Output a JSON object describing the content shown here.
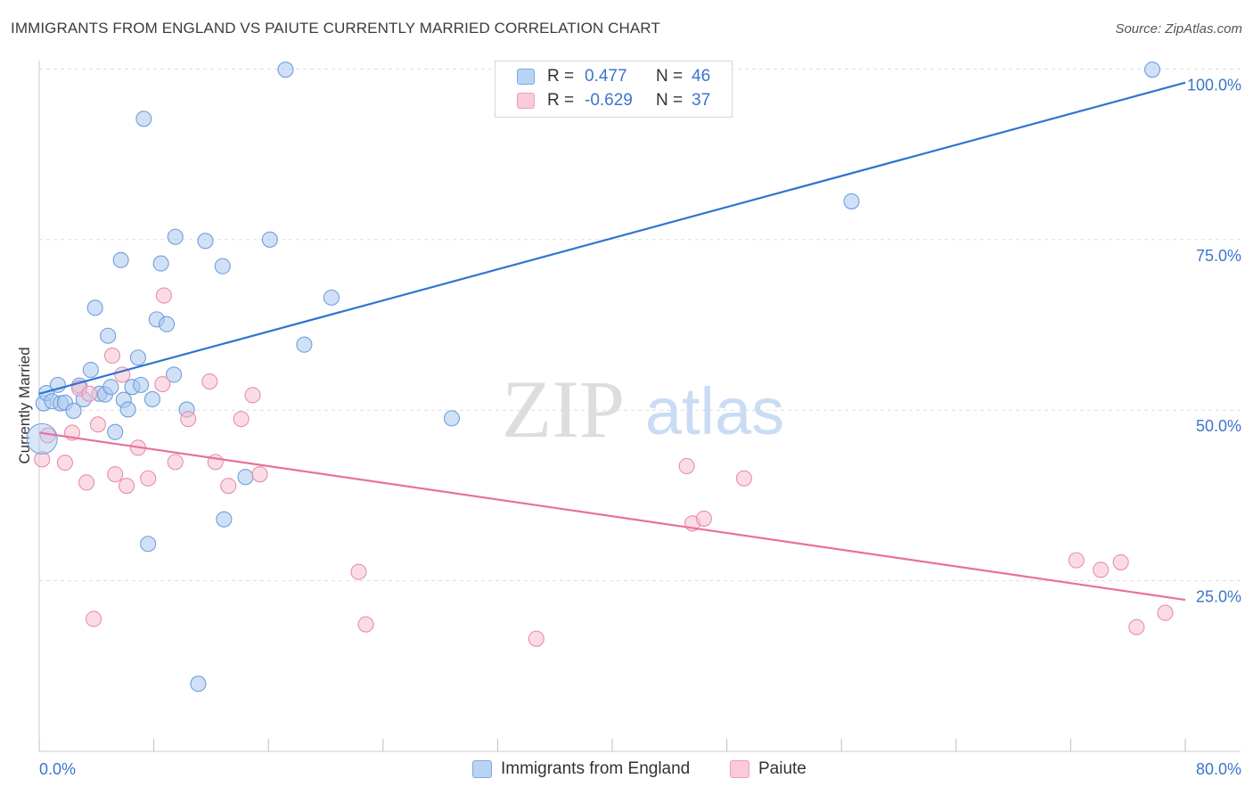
{
  "title": "IMMIGRANTS FROM ENGLAND VS PAIUTE CURRENTLY MARRIED CORRELATION CHART",
  "source": "Source: ZipAtlas.com",
  "watermark": {
    "zip": "ZIP",
    "atlas": "atlas"
  },
  "legend": {
    "rows": [
      {
        "r_label": "R =",
        "r_value": "0.477",
        "n_label": "N =",
        "n_value": "46"
      },
      {
        "r_label": "R =",
        "r_value": "-0.629",
        "n_label": "N =",
        "n_value": "37"
      }
    ]
  },
  "bottom_legend": {
    "england": "Immigrants from England",
    "paiute": "Paiute"
  },
  "colors": {
    "england_fill": "#a9c8f0",
    "england_stroke": "#6f9fdc",
    "england_line": "#2f74d0",
    "paiute_fill": "#f7bfd0",
    "paiute_stroke": "#e88eab",
    "paiute_line": "#e8719a",
    "tick_text": "#3b75cc",
    "grid": "#dedede"
  },
  "chart_data": {
    "type": "scatter",
    "title": "IMMIGRANTS FROM ENGLAND VS PAIUTE CURRENTLY MARRIED CORRELATION CHART",
    "xlabel": "",
    "ylabel": "Currently Married",
    "xlim": [
      0,
      80
    ],
    "ylim": [
      0,
      102
    ],
    "x_tick_labels": [
      "0.0%",
      "80.0%"
    ],
    "y_ticks": [
      25,
      50,
      75,
      100
    ],
    "y_tick_labels": [
      "25.0%",
      "50.0%",
      "75.0%",
      "100.0%"
    ],
    "grid": true,
    "legend_position": "top-center",
    "series": [
      {
        "name": "Immigrants from England",
        "R": 0.477,
        "N": 46,
        "trend": {
          "x": [
            0,
            80
          ],
          "y": [
            52.4,
            98.0
          ]
        },
        "points": [
          [
            0.3,
            51.0
          ],
          [
            0.5,
            52.5
          ],
          [
            0.9,
            51.3
          ],
          [
            1.3,
            53.7
          ],
          [
            1.5,
            51.0
          ],
          [
            1.8,
            51.1
          ],
          [
            2.4,
            49.9
          ],
          [
            2.8,
            53.6
          ],
          [
            3.1,
            51.6
          ],
          [
            3.6,
            55.9
          ],
          [
            3.9,
            65.0
          ],
          [
            4.2,
            52.4
          ],
          [
            4.6,
            52.3
          ],
          [
            4.8,
            60.9
          ],
          [
            5.0,
            53.4
          ],
          [
            5.3,
            46.8
          ],
          [
            5.7,
            72.0
          ],
          [
            5.9,
            51.5
          ],
          [
            6.2,
            50.1
          ],
          [
            6.5,
            53.4
          ],
          [
            6.9,
            57.7
          ],
          [
            7.1,
            53.7
          ],
          [
            7.3,
            92.7
          ],
          [
            7.6,
            30.4
          ],
          [
            7.9,
            51.6
          ],
          [
            8.2,
            63.3
          ],
          [
            8.5,
            71.5
          ],
          [
            8.9,
            62.6
          ],
          [
            9.4,
            55.2
          ],
          [
            9.5,
            75.4
          ],
          [
            10.3,
            50.1
          ],
          [
            11.1,
            9.9
          ],
          [
            11.6,
            74.8
          ],
          [
            12.8,
            71.1
          ],
          [
            12.9,
            34.0
          ],
          [
            14.4,
            40.2
          ],
          [
            16.1,
            75.0
          ],
          [
            17.2,
            99.9
          ],
          [
            18.5,
            59.6
          ],
          [
            20.4,
            66.5
          ],
          [
            28.8,
            48.8
          ],
          [
            56.7,
            80.6
          ],
          [
            77.7,
            99.9
          ]
        ]
      },
      {
        "name": "Paiute",
        "R": -0.629,
        "N": 37,
        "trend": {
          "x": [
            0,
            80
          ],
          "y": [
            46.7,
            22.2
          ]
        },
        "points": [
          [
            0.2,
            42.8
          ],
          [
            0.6,
            46.3
          ],
          [
            1.8,
            42.3
          ],
          [
            2.3,
            46.7
          ],
          [
            2.8,
            53.2
          ],
          [
            3.3,
            39.4
          ],
          [
            3.5,
            52.4
          ],
          [
            3.8,
            19.4
          ],
          [
            4.1,
            47.9
          ],
          [
            5.1,
            58.0
          ],
          [
            5.3,
            40.6
          ],
          [
            5.8,
            55.2
          ],
          [
            6.1,
            38.9
          ],
          [
            6.9,
            44.5
          ],
          [
            7.6,
            40.0
          ],
          [
            8.6,
            53.8
          ],
          [
            8.7,
            66.8
          ],
          [
            9.5,
            42.4
          ],
          [
            10.4,
            48.7
          ],
          [
            11.9,
            54.2
          ],
          [
            12.3,
            42.4
          ],
          [
            13.2,
            38.9
          ],
          [
            14.1,
            48.7
          ],
          [
            14.9,
            52.2
          ],
          [
            15.4,
            40.6
          ],
          [
            22.3,
            26.3
          ],
          [
            22.8,
            18.6
          ],
          [
            34.7,
            16.5
          ],
          [
            45.2,
            41.8
          ],
          [
            45.6,
            33.4
          ],
          [
            46.4,
            34.1
          ],
          [
            49.2,
            40.0
          ],
          [
            72.4,
            28.0
          ],
          [
            74.1,
            26.6
          ],
          [
            75.5,
            27.7
          ],
          [
            76.6,
            18.2
          ],
          [
            78.6,
            20.3
          ]
        ]
      }
    ]
  }
}
